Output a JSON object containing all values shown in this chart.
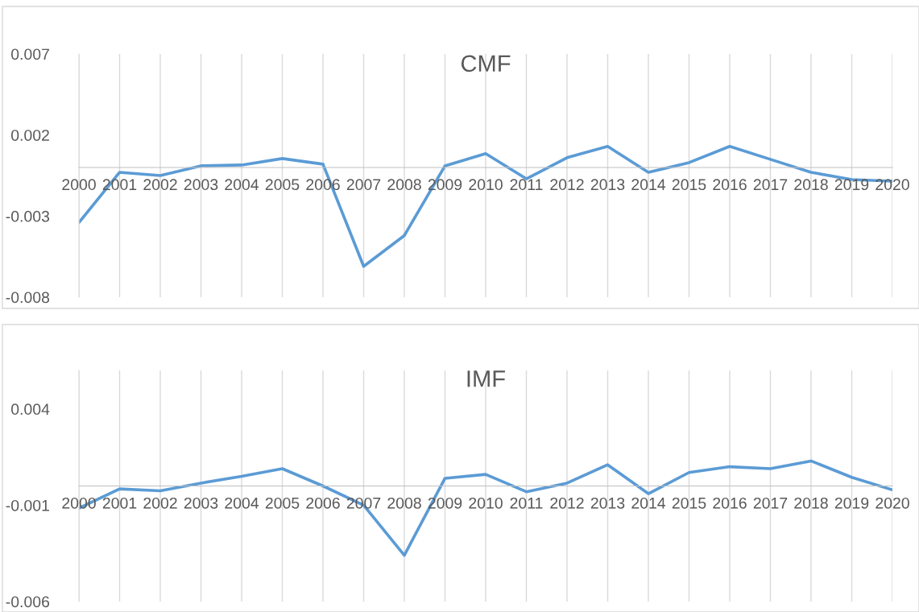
{
  "chart_data": [
    {
      "type": "line",
      "title": "CMF",
      "categories": [
        "2000",
        "2001",
        "2002",
        "2003",
        "2004",
        "2005",
        "2006",
        "2007",
        "2008",
        "2009",
        "2010",
        "2011",
        "2012",
        "2013",
        "2014",
        "2015",
        "2016",
        "2017",
        "2018",
        "2019",
        "2020"
      ],
      "series": [
        {
          "color": "#5b9bd5",
          "values": [
            -0.0034,
            -0.0003,
            -0.0005,
            0.0001,
            0.00015,
            0.00055,
            0.0002,
            -0.0061,
            -0.0042,
            0.0001,
            0.00085,
            -0.0007,
            0.0006,
            0.0013,
            -0.0003,
            0.0003,
            0.0013,
            0.0005,
            -0.0003,
            -0.00075,
            -0.00085
          ]
        }
      ],
      "ylim": [
        -0.008,
        0.007
      ],
      "yticks": [
        -0.008,
        -0.003,
        0.002,
        0.007
      ],
      "grid": "x",
      "legend": false,
      "marker": "none",
      "line_style": "solid"
    },
    {
      "type": "line",
      "title": "IMF",
      "categories": [
        "2000",
        "2001",
        "2002",
        "2003",
        "2004",
        "2005",
        "2006",
        "2007",
        "2008",
        "2009",
        "2010",
        "2011",
        "2012",
        "2013",
        "2014",
        "2015",
        "2016",
        "2017",
        "2018",
        "2019",
        "2020"
      ],
      "series": [
        {
          "color": "#5b9bd5",
          "values": [
            -0.00115,
            -0.00015,
            -0.00025,
            0.00015,
            0.0005,
            0.0009,
            0,
            -0.001,
            -0.0036,
            0.0004,
            0.0006,
            -0.0003,
            0.00015,
            0.0011,
            -0.0004,
            0.0007,
            0.001,
            0.0009,
            0.0013,
            0.00045,
            -0.0002
          ]
        }
      ],
      "ylim": [
        -0.006,
        0.006
      ],
      "yticks": [
        -0.006,
        -0.001,
        0.004
      ],
      "grid": "x",
      "legend": false,
      "marker": "none",
      "line_style": "solid"
    }
  ]
}
